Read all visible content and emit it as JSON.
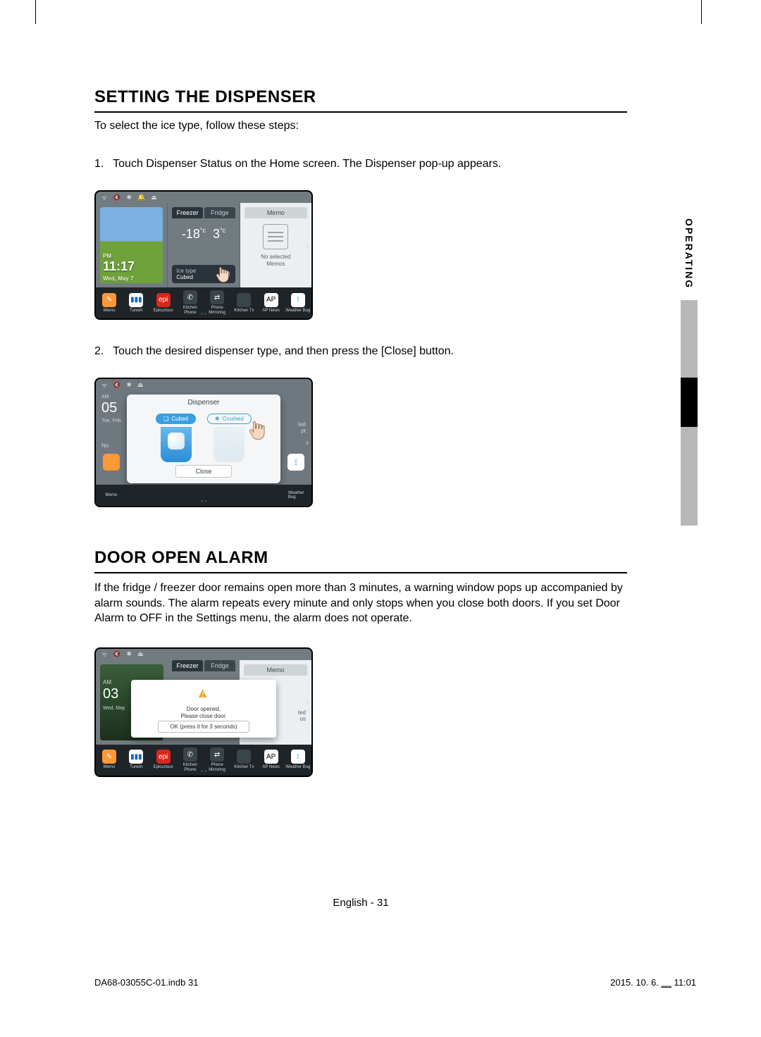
{
  "sideTab": {
    "label": "OPERATING"
  },
  "section1": {
    "heading": "SETTING THE DISPENSER",
    "intro": "To select the ice type, follow these steps:",
    "step1_num": "1.",
    "step1": "Touch Dispenser Status on the Home screen. The Dispenser pop-up appears.",
    "step2_num": "2.",
    "step2": "Touch the desired dispenser type, and then press the [Close] button."
  },
  "homeScreen": {
    "clock_ampm": "PM",
    "clock_time": "11:17",
    "clock_date": "Wed, May 7",
    "tab_freezer": "Freezer",
    "tab_fridge": "Fridge",
    "temp_freezer": "-18",
    "temp_fridge": "3",
    "temp_unit": "°c",
    "icetype_label": "Ice type",
    "icetype_value": "Cubed",
    "memo_tab": "Memo",
    "memo_empty_l1": "No selected",
    "memo_empty_l2": "Memos",
    "apps": [
      {
        "label": "Memo",
        "icon": "✎",
        "bg": "#ff9838"
      },
      {
        "label": "TuneIn",
        "icon": "▮▮▮",
        "bg": "#fff",
        "fg": "#0a66c2"
      },
      {
        "label": "Epicurious",
        "icon": "epi",
        "bg": "#d9261c"
      },
      {
        "label": "Kitchen Phone",
        "icon": "✆",
        "bg": "#3a444b"
      },
      {
        "label": "Phone Mirroring",
        "icon": "⇄",
        "bg": "#3a444b"
      },
      {
        "label": "Kitchen Tv",
        "icon": "",
        "bg": "#3a444b"
      },
      {
        "label": "AP News",
        "icon": "AP",
        "bg": "#fff",
        "fg": "#000"
      },
      {
        "label": "Weather Bug",
        "icon": "⟟",
        "bg": "#fff",
        "fg": "#28a0e0"
      }
    ]
  },
  "dispenserPopup": {
    "left_ampm": "AM",
    "left_time": "05",
    "left_date": "Tue, Feb",
    "title": "Dispenser",
    "opt_cubed": "Cubed",
    "opt_crushed": "Crushed",
    "close": "Close",
    "memo_side_l1": "ted",
    "memo_side_l2": "pt",
    "no": "No"
  },
  "section2": {
    "heading": "DOOR OPEN ALARM",
    "para": "If the fridge / freezer door remains open more than 3 minutes, a warning window pops up accompanied by alarm sounds. The alarm repeats every minute and only stops when you close both doors. If you set Door Alarm to OFF in the Settings menu, the alarm does not operate."
  },
  "alarmScreen": {
    "am": "AM",
    "time": "03",
    "date": "Wed, May",
    "line1": "Door opened,",
    "line2": "Please close door.",
    "ok": "OK (press it for 3 seconds)",
    "memo_tab": "Memo",
    "side_l1": "ted",
    "side_l2": "os",
    "tab_freezer": "Freezer",
    "tab_fridge": "Fridge"
  },
  "footer": {
    "pageno": "English - 31",
    "docid": "DA68-03055C-01.indb   31",
    "printtime": "2015. 10. 6.   ‗‗ 11:01"
  },
  "colors": {
    "accent": "#3aa0e0",
    "warn": "#f5a623",
    "appbar": "#1e2428"
  }
}
